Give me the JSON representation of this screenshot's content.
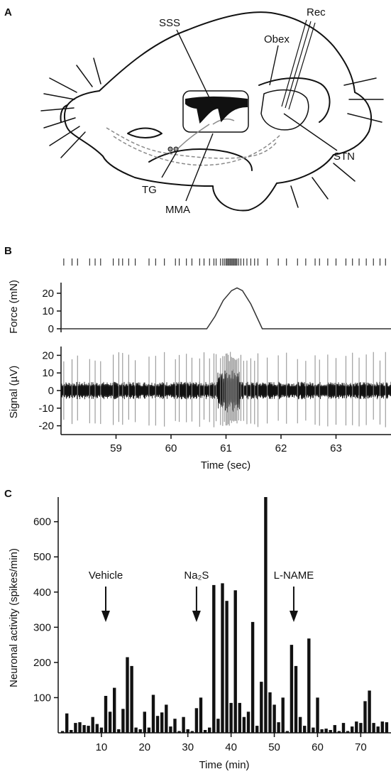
{
  "panels": {
    "a": {
      "letter": "A"
    },
    "b": {
      "letter": "B"
    },
    "c": {
      "letter": "C"
    }
  },
  "diagram": {
    "labels": {
      "sss": "SSS",
      "rec": "Rec",
      "obex": "Obex",
      "stn": "STN",
      "tg": "TG",
      "mma": "MMA"
    }
  },
  "colors": {
    "ink": "#111111",
    "signal_gray": "#8a8a8a"
  },
  "chart_data": [
    {
      "type": "raster",
      "panel": "B",
      "description_free": true,
      "x_range": [
        58,
        64
      ],
      "spike_times": [
        58.05,
        58.2,
        58.3,
        58.52,
        58.62,
        58.72,
        58.95,
        59.05,
        59.12,
        59.23,
        59.35,
        59.6,
        59.72,
        59.88,
        60.08,
        60.15,
        60.28,
        60.38,
        60.52,
        60.6,
        60.7,
        60.78,
        60.82,
        60.9,
        60.94,
        60.97,
        61.0,
        61.02,
        61.04,
        61.06,
        61.08,
        61.1,
        61.12,
        61.14,
        61.16,
        61.18,
        61.2,
        61.23,
        61.27,
        61.32,
        61.38,
        61.45,
        61.52,
        61.58,
        61.75,
        61.95,
        62.1,
        62.3,
        62.45,
        62.62,
        62.7,
        62.85,
        63.0,
        63.18,
        63.3,
        63.42,
        63.55,
        63.68,
        63.8,
        63.9
      ]
    },
    {
      "type": "line",
      "panel": "B",
      "ylabel": "Force (mN)",
      "yticks": [
        0,
        10,
        20
      ],
      "ylim": [
        -2,
        26
      ],
      "x_range": [
        58,
        64
      ],
      "x": [
        58.0,
        60.65,
        60.8,
        60.95,
        61.1,
        61.2,
        61.3,
        61.45,
        61.6,
        61.66,
        64.0
      ],
      "values": [
        0,
        0,
        7,
        16,
        21.5,
        23,
        21.5,
        14,
        4,
        0,
        0
      ]
    },
    {
      "type": "line",
      "panel": "B",
      "xlabel": "Time (sec)",
      "ylabel": "Signal (µV)",
      "yticks": [
        -20,
        -10,
        0,
        10,
        20
      ],
      "xticks": [
        59,
        60,
        61,
        62,
        63
      ],
      "ylim": [
        -25,
        25
      ],
      "x_range": [
        58,
        64
      ],
      "noise_amplitude": 5,
      "spike_amplitude": 22
    },
    {
      "type": "bar",
      "panel": "C",
      "xlabel": "Time (min)",
      "ylabel": "Neuronal activity (spikes/min)",
      "xticks": [
        10,
        20,
        30,
        40,
        50,
        60,
        70
      ],
      "yticks": [
        100,
        200,
        300,
        400,
        500,
        600
      ],
      "xlim": [
        0,
        77
      ],
      "ylim": [
        0,
        670
      ],
      "categories": [
        1,
        2,
        3,
        4,
        5,
        6,
        7,
        8,
        9,
        10,
        11,
        12,
        13,
        14,
        15,
        16,
        17,
        18,
        19,
        20,
        21,
        22,
        23,
        24,
        25,
        26,
        27,
        28,
        29,
        30,
        31,
        32,
        33,
        34,
        35,
        36,
        37,
        38,
        39,
        40,
        41,
        42,
        43,
        44,
        45,
        46,
        47,
        48,
        49,
        50,
        51,
        52,
        53,
        54,
        55,
        56,
        57,
        58,
        59,
        60,
        61,
        62,
        63,
        64,
        65,
        66,
        67,
        68,
        69,
        70,
        71,
        72,
        73,
        74,
        75,
        76
      ],
      "values": [
        5,
        55,
        8,
        28,
        30,
        22,
        20,
        45,
        25,
        15,
        105,
        60,
        128,
        10,
        68,
        215,
        190,
        15,
        10,
        60,
        15,
        108,
        48,
        58,
        80,
        18,
        40,
        5,
        45,
        10,
        5,
        70,
        100,
        8,
        15,
        420,
        40,
        425,
        375,
        85,
        405,
        85,
        45,
        60,
        315,
        20,
        145,
        670,
        115,
        80,
        30,
        100,
        5,
        250,
        190,
        45,
        20,
        268,
        15,
        100,
        10,
        12,
        8,
        22,
        5,
        28,
        5,
        18,
        32,
        28,
        90,
        120,
        28,
        18,
        32,
        30
      ],
      "annotations": [
        {
          "label": "Vehicle",
          "x": 11
        },
        {
          "label": "Na₂S",
          "x": 32
        },
        {
          "label": "L-NAME",
          "x": 54.5
        }
      ]
    }
  ]
}
